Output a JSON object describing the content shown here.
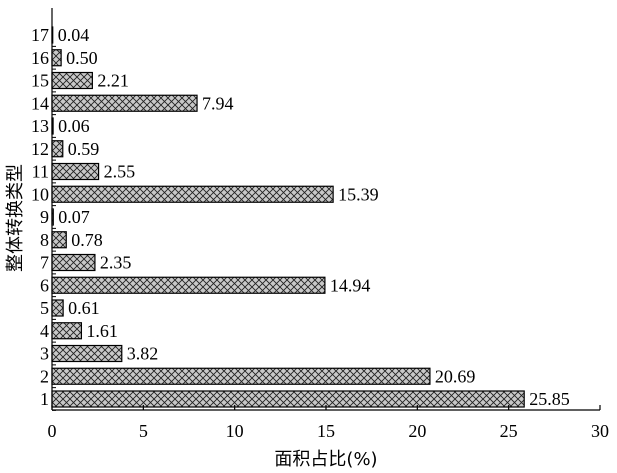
{
  "chart_data": {
    "type": "bar",
    "orientation": "horizontal",
    "categories": [
      "1",
      "2",
      "3",
      "4",
      "5",
      "6",
      "7",
      "8",
      "9",
      "10",
      "11",
      "12",
      "13",
      "14",
      "15",
      "16",
      "17"
    ],
    "values": [
      25.85,
      20.69,
      3.82,
      1.61,
      0.61,
      14.94,
      2.35,
      0.78,
      0.07,
      15.39,
      2.55,
      0.59,
      0.06,
      7.94,
      2.21,
      0.5,
      0.04
    ],
    "value_labels": [
      "25.85",
      "20.69",
      "3.82",
      "1.61",
      "0.61",
      "14.94",
      "2.35",
      "0.78",
      "0.07",
      "15.39",
      "2.55",
      "0.59",
      "0.06",
      "7.94",
      "2.21",
      "0.50",
      "0.04"
    ],
    "xlabel": "面积占比(%)",
    "ylabel": "整体转换类型",
    "xlim": [
      0,
      30
    ],
    "xticks": [
      0,
      5,
      10,
      15,
      20,
      25,
      30
    ],
    "bar_fill": "#c8c8c8",
    "bar_pattern": "cross-hatch",
    "bar_stroke": "#000000",
    "grid": false,
    "legend": "none"
  }
}
